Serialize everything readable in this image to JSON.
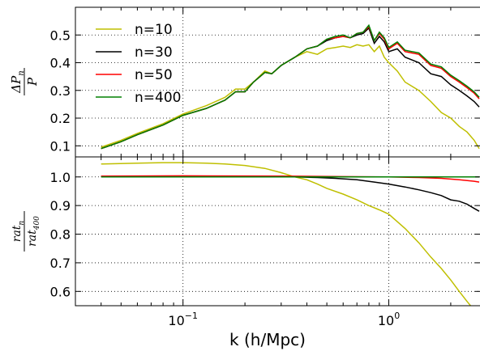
{
  "chart_data": [
    {
      "type": "line",
      "panel": "top",
      "ylabel_num": "ΔP",
      "ylabel_num_sub": "n",
      "ylabel_den": "P",
      "xscale": "log",
      "xlim": [
        0.03,
        2.8
      ],
      "ylim": [
        0.06,
        0.6
      ],
      "yticks": [
        "0.1",
        "0.2",
        "0.3",
        "0.4",
        "0.5"
      ],
      "grid": true,
      "legend_position": "upper-left",
      "series": [
        {
          "name": "n=10",
          "color": "#bfbf00",
          "x": [
            0.04,
            0.05,
            0.06,
            0.08,
            0.1,
            0.13,
            0.16,
            0.18,
            0.2,
            0.22,
            0.25,
            0.27,
            0.3,
            0.35,
            0.4,
            0.45,
            0.5,
            0.55,
            0.6,
            0.65,
            0.7,
            0.75,
            0.8,
            0.85,
            0.9,
            0.95,
            1.0,
            1.1,
            1.2,
            1.4,
            1.6,
            1.8,
            2.0,
            2.2,
            2.4,
            2.6,
            2.75
          ],
          "y": [
            0.095,
            0.12,
            0.145,
            0.18,
            0.215,
            0.245,
            0.275,
            0.305,
            0.305,
            0.33,
            0.37,
            0.36,
            0.39,
            0.42,
            0.44,
            0.43,
            0.45,
            0.455,
            0.46,
            0.455,
            0.465,
            0.46,
            0.465,
            0.44,
            0.46,
            0.42,
            0.4,
            0.37,
            0.33,
            0.3,
            0.26,
            0.22,
            0.2,
            0.17,
            0.15,
            0.12,
            0.09
          ]
        },
        {
          "name": "n=30",
          "color": "#000000",
          "x": [
            0.04,
            0.05,
            0.06,
            0.08,
            0.1,
            0.13,
            0.16,
            0.18,
            0.2,
            0.22,
            0.25,
            0.27,
            0.3,
            0.35,
            0.4,
            0.45,
            0.5,
            0.55,
            0.6,
            0.65,
            0.7,
            0.75,
            0.8,
            0.85,
            0.9,
            0.95,
            1.0,
            1.1,
            1.2,
            1.4,
            1.6,
            1.8,
            2.0,
            2.2,
            2.4,
            2.6,
            2.75
          ],
          "y": [
            0.09,
            0.115,
            0.14,
            0.175,
            0.21,
            0.235,
            0.265,
            0.295,
            0.295,
            0.33,
            0.365,
            0.36,
            0.39,
            0.42,
            0.45,
            0.46,
            0.48,
            0.49,
            0.495,
            0.49,
            0.5,
            0.505,
            0.525,
            0.47,
            0.495,
            0.475,
            0.44,
            0.45,
            0.42,
            0.4,
            0.36,
            0.35,
            0.32,
            0.3,
            0.28,
            0.26,
            0.24
          ]
        },
        {
          "name": "n=50",
          "color": "#ff0000",
          "x": [
            0.04,
            0.05,
            0.06,
            0.08,
            0.1,
            0.13,
            0.16,
            0.18,
            0.2,
            0.22,
            0.25,
            0.27,
            0.3,
            0.35,
            0.4,
            0.45,
            0.5,
            0.55,
            0.6,
            0.65,
            0.7,
            0.75,
            0.8,
            0.85,
            0.9,
            0.95,
            1.0,
            1.1,
            1.2,
            1.4,
            1.6,
            1.8,
            2.0,
            2.2,
            2.4,
            2.6,
            2.75
          ],
          "y": [
            0.09,
            0.115,
            0.14,
            0.175,
            0.21,
            0.235,
            0.265,
            0.295,
            0.295,
            0.33,
            0.365,
            0.36,
            0.39,
            0.42,
            0.45,
            0.46,
            0.485,
            0.49,
            0.495,
            0.49,
            0.505,
            0.51,
            0.53,
            0.48,
            0.505,
            0.485,
            0.45,
            0.47,
            0.44,
            0.43,
            0.39,
            0.38,
            0.35,
            0.33,
            0.31,
            0.29,
            0.27
          ]
        },
        {
          "name": "n=400",
          "color": "#008000",
          "x": [
            0.04,
            0.05,
            0.06,
            0.08,
            0.1,
            0.13,
            0.16,
            0.18,
            0.2,
            0.22,
            0.25,
            0.27,
            0.3,
            0.35,
            0.4,
            0.45,
            0.5,
            0.55,
            0.6,
            0.65,
            0.7,
            0.75,
            0.8,
            0.85,
            0.9,
            0.95,
            1.0,
            1.1,
            1.2,
            1.4,
            1.6,
            1.8,
            2.0,
            2.2,
            2.4,
            2.6,
            2.75
          ],
          "y": [
            0.09,
            0.115,
            0.14,
            0.175,
            0.21,
            0.235,
            0.265,
            0.295,
            0.295,
            0.33,
            0.365,
            0.36,
            0.39,
            0.42,
            0.45,
            0.46,
            0.485,
            0.495,
            0.5,
            0.49,
            0.505,
            0.51,
            0.535,
            0.48,
            0.51,
            0.49,
            0.455,
            0.475,
            0.445,
            0.435,
            0.395,
            0.385,
            0.355,
            0.335,
            0.315,
            0.295,
            0.275
          ]
        }
      ]
    },
    {
      "type": "line",
      "panel": "bottom",
      "ylabel_num": "rat",
      "ylabel_num_sub": "n",
      "ylabel_den": "rat",
      "ylabel_den_sub": "400",
      "xscale": "log",
      "xlim": [
        0.03,
        2.8
      ],
      "ylim": [
        0.55,
        1.07
      ],
      "yticks": [
        "0.6",
        "0.7",
        "0.8",
        "0.9",
        "1.0"
      ],
      "xticks": [
        {
          "base": "10",
          "exp": "−1",
          "value": 0.1
        },
        {
          "base": "10",
          "exp": "0",
          "value": 1.0
        }
      ],
      "xlabel": "k (h/Mpc)",
      "grid": true,
      "series": [
        {
          "name": "n=10",
          "color": "#bfbf00",
          "x": [
            0.04,
            0.06,
            0.08,
            0.1,
            0.13,
            0.16,
            0.2,
            0.25,
            0.3,
            0.35,
            0.4,
            0.45,
            0.5,
            0.6,
            0.7,
            0.8,
            0.9,
            1.0,
            1.2,
            1.4,
            1.6,
            1.8,
            2.0,
            2.2,
            2.4,
            2.6
          ],
          "y": [
            1.045,
            1.048,
            1.05,
            1.05,
            1.048,
            1.045,
            1.04,
            1.03,
            1.015,
            1.0,
            0.99,
            0.975,
            0.96,
            0.94,
            0.92,
            0.9,
            0.885,
            0.87,
            0.82,
            0.77,
            0.72,
            0.68,
            0.64,
            0.6,
            0.565,
            0.535
          ]
        },
        {
          "name": "n=30",
          "color": "#000000",
          "x": [
            0.04,
            0.08,
            0.15,
            0.25,
            0.35,
            0.45,
            0.55,
            0.7,
            0.85,
            1.0,
            1.2,
            1.4,
            1.6,
            1.8,
            2.0,
            2.2,
            2.4,
            2.6,
            2.75
          ],
          "y": [
            1.002,
            1.003,
            1.003,
            1.002,
            1.0,
            0.998,
            0.995,
            0.99,
            0.982,
            0.975,
            0.965,
            0.955,
            0.945,
            0.935,
            0.92,
            0.915,
            0.905,
            0.89,
            0.88
          ]
        },
        {
          "name": "n=50",
          "color": "#ff0000",
          "x": [
            0.04,
            0.1,
            0.3,
            0.6,
            1.0,
            1.4,
            1.8,
            2.2,
            2.6,
            2.75
          ],
          "y": [
            1.003,
            1.004,
            1.003,
            1.001,
            1.0,
            0.998,
            0.995,
            0.99,
            0.985,
            0.982
          ]
        },
        {
          "name": "n=400",
          "color": "#008000",
          "x": [
            0.04,
            2.75
          ],
          "y": [
            1.0,
            1.0
          ]
        }
      ]
    }
  ]
}
